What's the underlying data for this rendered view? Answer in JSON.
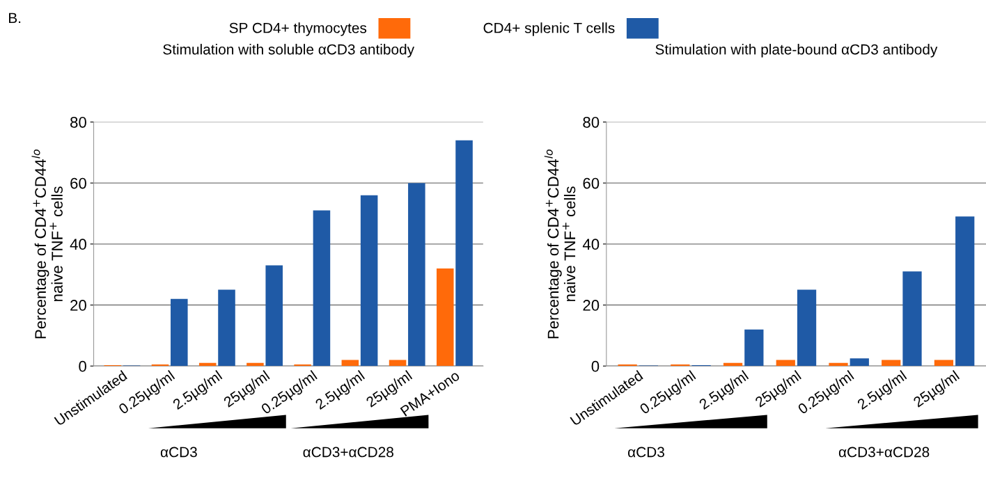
{
  "chart_data": [
    {
      "type": "bar",
      "title": "Stimulation with soluble αCD3 antibody",
      "ylabel": "Percentage of CD4$^{+}$CD44$^{lo}$\nnaive TNF$^{+}$ cells",
      "categories": [
        "Unstimulated",
        "0.25µg/ml",
        "2.5µg/ml",
        "25µg/ml",
        "0.25µg/ml",
        "2.5µg/ml",
        "25µg/ml",
        "PMA+Iono"
      ],
      "series": [
        {
          "name": "SP CD4+ thymocytes",
          "color": "#ff6a0a",
          "values": [
            0.3,
            0.5,
            1,
            1,
            0.5,
            2,
            2,
            32
          ]
        },
        {
          "name": "CD4+ splenic T cells",
          "color": "#1f5aa6",
          "values": [
            0.2,
            22,
            25,
            33,
            51,
            56,
            60,
            74
          ]
        }
      ],
      "ylim": [
        0,
        80
      ],
      "yticks": [
        0,
        20,
        40,
        60,
        80
      ],
      "grid": "y",
      "legend": "top",
      "annotations": [
        "B.",
        "αCD3",
        "αCD3+αCD28"
      ]
    },
    {
      "type": "bar",
      "title": "Stimulation with plate-bound αCD3 antibody",
      "ylabel": "Percentage of CD4$^{+}$CD44$^{lo}$\nnaive TNF$^{+}$ cells",
      "categories": [
        "Unstimulated",
        "0.25µg/ml",
        "2.5µg/ml",
        "25µg/ml",
        "0.25µg/ml",
        "2.5µg/ml",
        "25µg/ml"
      ],
      "series": [
        {
          "color": "#ff6a0a",
          "values": [
            0.5,
            0.5,
            1,
            2,
            1,
            2,
            2
          ]
        },
        {
          "color": "#1f5aa6",
          "values": [
            0.2,
            0.3,
            12,
            25,
            2.5,
            31,
            49
          ]
        }
      ],
      "ylim": [
        0,
        80
      ],
      "yticks": [
        0,
        20,
        40,
        60,
        80
      ],
      "grid": "y",
      "annotations": [
        "αCD3",
        "αCD3+αCD28"
      ]
    }
  ]
}
